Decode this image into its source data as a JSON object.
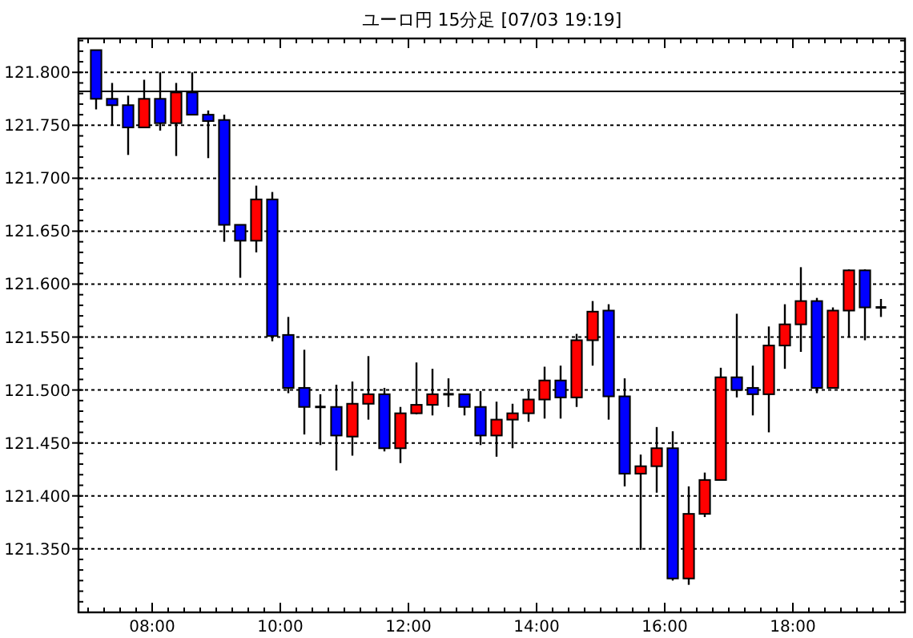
{
  "chart_data": {
    "type": "candlestick",
    "title": "ユーロ円 15分足 [07/03 19:19]",
    "x": [
      7.125,
      7.375,
      7.625,
      7.875,
      8.125,
      8.375,
      8.625,
      8.875,
      9.125,
      9.375,
      9.625,
      9.875,
      10.125,
      10.375,
      10.625,
      10.875,
      11.125,
      11.375,
      11.625,
      11.875,
      12.125,
      12.375,
      12.625,
      12.875,
      13.125,
      13.375,
      13.625,
      13.875,
      14.125,
      14.375,
      14.625,
      14.875,
      15.125,
      15.375,
      15.625,
      15.875,
      16.125,
      16.375,
      16.625,
      16.875,
      17.125,
      17.375,
      17.625,
      17.875,
      18.125,
      18.375,
      18.625,
      18.875,
      19.125,
      19.375
    ],
    "ohlc": [
      [
        121.821,
        121.821,
        121.765,
        121.775
      ],
      [
        121.775,
        121.79,
        121.75,
        121.769
      ],
      [
        121.769,
        121.778,
        121.722,
        121.748
      ],
      [
        121.748,
        121.793,
        121.748,
        121.775
      ],
      [
        121.775,
        121.8,
        121.745,
        121.752
      ],
      [
        121.752,
        121.79,
        121.721,
        121.781
      ],
      [
        121.781,
        121.8,
        121.76,
        121.76
      ],
      [
        121.76,
        121.764,
        121.719,
        121.754
      ],
      [
        121.755,
        121.76,
        121.64,
        121.656
      ],
      [
        121.656,
        121.656,
        121.606,
        121.641
      ],
      [
        121.641,
        121.693,
        121.63,
        121.68
      ],
      [
        121.68,
        121.687,
        121.546,
        121.551
      ],
      [
        121.552,
        121.569,
        121.497,
        121.502
      ],
      [
        121.502,
        121.538,
        121.458,
        121.484
      ],
      [
        121.484,
        121.496,
        121.448,
        121.484
      ],
      [
        121.484,
        121.505,
        121.424,
        121.457
      ],
      [
        121.456,
        121.508,
        121.438,
        121.487
      ],
      [
        121.487,
        121.532,
        121.472,
        121.496
      ],
      [
        121.496,
        121.502,
        121.442,
        121.445
      ],
      [
        121.445,
        121.484,
        121.431,
        121.478
      ],
      [
        121.478,
        121.526,
        121.477,
        121.486
      ],
      [
        121.486,
        121.52,
        121.476,
        121.496
      ],
      [
        121.496,
        121.511,
        121.484,
        121.496
      ],
      [
        121.496,
        121.496,
        121.476,
        121.484
      ],
      [
        121.484,
        121.499,
        121.448,
        121.457
      ],
      [
        121.457,
        121.489,
        121.437,
        121.472
      ],
      [
        121.472,
        121.487,
        121.445,
        121.478
      ],
      [
        121.478,
        121.499,
        121.47,
        121.491
      ],
      [
        121.491,
        121.522,
        121.473,
        121.509
      ],
      [
        121.509,
        121.523,
        121.473,
        121.493
      ],
      [
        121.493,
        121.553,
        121.484,
        121.547
      ],
      [
        121.547,
        121.584,
        121.523,
        121.574
      ],
      [
        121.575,
        121.581,
        121.472,
        121.494
      ],
      [
        121.494,
        121.511,
        121.409,
        121.421
      ],
      [
        121.421,
        121.439,
        121.349,
        121.428
      ],
      [
        121.428,
        121.465,
        121.403,
        121.445
      ],
      [
        121.445,
        121.461,
        121.32,
        121.322
      ],
      [
        121.322,
        121.409,
        121.316,
        121.383
      ],
      [
        121.383,
        121.422,
        121.38,
        121.415
      ],
      [
        121.415,
        121.521,
        121.415,
        121.512
      ],
      [
        121.512,
        121.572,
        121.493,
        121.5
      ],
      [
        121.502,
        121.523,
        121.476,
        121.496
      ],
      [
        121.496,
        121.56,
        121.46,
        121.542
      ],
      [
        121.542,
        121.581,
        121.52,
        121.562
      ],
      [
        121.562,
        121.616,
        121.536,
        121.584
      ],
      [
        121.584,
        121.587,
        121.497,
        121.502
      ],
      [
        121.502,
        121.578,
        121.502,
        121.575
      ],
      [
        121.575,
        121.614,
        121.55,
        121.613
      ],
      [
        121.613,
        121.614,
        121.547,
        121.578
      ],
      [
        121.578,
        121.586,
        121.569,
        121.578
      ]
    ],
    "colors": [
      "#0000ff",
      "#0000ff",
      "#0000ff",
      "#ff0000",
      "#0000ff",
      "#ff0000",
      "#0000ff",
      "#0000ff",
      "#0000ff",
      "#0000ff",
      "#ff0000",
      "#0000ff",
      "#0000ff",
      "#0000ff",
      "#000000",
      "#0000ff",
      "#ff0000",
      "#ff0000",
      "#0000ff",
      "#ff0000",
      "#ff0000",
      "#ff0000",
      "#000000",
      "#0000ff",
      "#0000ff",
      "#ff0000",
      "#ff0000",
      "#ff0000",
      "#ff0000",
      "#0000ff",
      "#ff0000",
      "#ff0000",
      "#0000ff",
      "#0000ff",
      "#ff0000",
      "#ff0000",
      "#0000ff",
      "#ff0000",
      "#ff0000",
      "#ff0000",
      "#0000ff",
      "#0000ff",
      "#ff0000",
      "#ff0000",
      "#ff0000",
      "#0000ff",
      "#ff0000",
      "#ff0000",
      "#0000ff",
      "#000000"
    ],
    "xlim": [
      6.85,
      19.75
    ],
    "ylim": [
      121.29,
      121.832
    ],
    "xticks": [
      {
        "value": 8,
        "label": "08:00"
      },
      {
        "value": 10,
        "label": "10:00"
      },
      {
        "value": 12,
        "label": "12:00"
      },
      {
        "value": 14,
        "label": "14:00"
      },
      {
        "value": 16,
        "label": "16:00"
      },
      {
        "value": 18,
        "label": "18:00"
      }
    ],
    "yticks": [
      {
        "value": 121.35,
        "label": "121.350"
      },
      {
        "value": 121.4,
        "label": "121.400"
      },
      {
        "value": 121.45,
        "label": "121.450"
      },
      {
        "value": 121.5,
        "label": "121.500"
      },
      {
        "value": 121.55,
        "label": "121.550"
      },
      {
        "value": 121.6,
        "label": "121.600"
      },
      {
        "value": 121.65,
        "label": "121.650"
      },
      {
        "value": 121.7,
        "label": "121.700"
      },
      {
        "value": 121.75,
        "label": "121.750"
      },
      {
        "value": 121.8,
        "label": "121.800"
      }
    ],
    "grid": "y",
    "ref_lines": [
      {
        "axis": "y",
        "value": 121.782,
        "color": "#000000"
      }
    ]
  }
}
